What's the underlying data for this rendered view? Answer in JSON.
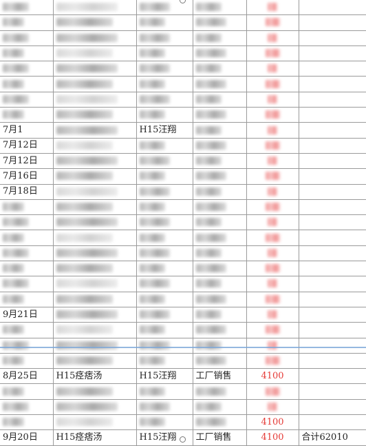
{
  "rows": [
    {
      "date": "",
      "item": "",
      "person": "",
      "type": "",
      "amount": "",
      "note": "",
      "blurred": true
    },
    {
      "date": "",
      "item": "",
      "person": "",
      "type": "",
      "amount": "",
      "note": "",
      "blurred": true
    },
    {
      "date": "",
      "item": "",
      "person": "",
      "type": "",
      "amount": "",
      "note": "",
      "blurred": true
    },
    {
      "date": "",
      "item": "",
      "person": "",
      "type": "",
      "amount": "",
      "note": "",
      "blurred": true
    },
    {
      "date": "",
      "item": "",
      "person": "",
      "type": "",
      "amount": "",
      "note": "",
      "blurred": true
    },
    {
      "date": "",
      "item": "",
      "person": "",
      "type": "",
      "amount": "",
      "note": "",
      "blurred": true
    },
    {
      "date": "",
      "item": "",
      "person": "",
      "type": "",
      "amount": "",
      "note": "",
      "blurred": true
    },
    {
      "date": "",
      "item": "",
      "person": "",
      "type": "",
      "amount": "",
      "note": "",
      "blurred": true
    },
    {
      "date": "7月1",
      "item": "",
      "person": "H15汪翔",
      "type": "",
      "amount": "",
      "note": "",
      "blurred": true
    },
    {
      "date": "7月12日",
      "item": "",
      "person": "",
      "type": "",
      "amount": "",
      "note": "",
      "blurred": true
    },
    {
      "date": "7月12日",
      "item": "",
      "person": "",
      "type": "",
      "amount": "",
      "note": "",
      "blurred": true
    },
    {
      "date": "7月16日",
      "item": "",
      "person": "",
      "type": "",
      "amount": "",
      "note": "",
      "blurred": true
    },
    {
      "date": "7月18日",
      "item": "",
      "person": "",
      "type": "",
      "amount": "",
      "note": "",
      "blurred": true
    },
    {
      "date": "",
      "item": "",
      "person": "",
      "type": "",
      "amount": "",
      "note": "",
      "blurred": true
    },
    {
      "date": "",
      "item": "",
      "person": "",
      "type": "",
      "amount": "",
      "note": "",
      "blurred": true
    },
    {
      "date": "",
      "item": "",
      "person": "",
      "type": "",
      "amount": "",
      "note": "",
      "blurred": true
    },
    {
      "date": "",
      "item": "",
      "person": "",
      "type": "",
      "amount": "",
      "note": "",
      "blurred": true
    },
    {
      "date": "",
      "item": "",
      "person": "",
      "type": "",
      "amount": "",
      "note": "",
      "blurred": true
    },
    {
      "date": "",
      "item": "",
      "person": "",
      "type": "",
      "amount": "",
      "note": "",
      "blurred": true
    },
    {
      "date": "",
      "item": "",
      "person": "",
      "type": "",
      "amount": "",
      "note": "",
      "blurred": true
    },
    {
      "date": "9月21日",
      "item": "",
      "person": "",
      "type": "",
      "amount": "",
      "note": "",
      "blurred": true
    },
    {
      "date": "",
      "item": "",
      "person": "",
      "type": "",
      "amount": "",
      "note": "",
      "blurred": true
    },
    {
      "date": "",
      "item": "",
      "person": "",
      "type": "",
      "amount": "",
      "note": "",
      "blurred": true
    },
    {
      "date": "",
      "item": "",
      "person": "",
      "type": "",
      "amount": "",
      "note": "",
      "blurred": true
    },
    {
      "date": "8月25日",
      "item": "H15痉痞汤",
      "person": "H15汪翔",
      "type": "工厂销售",
      "amount": "4100",
      "note": "",
      "blurred": false
    },
    {
      "date": "",
      "item": "",
      "person": "",
      "type": "",
      "amount": "",
      "note": "",
      "blurred": true
    },
    {
      "date": "",
      "item": "",
      "person": "",
      "type": "",
      "amount": "",
      "note": "",
      "blurred": true
    },
    {
      "date": "",
      "item": "",
      "person": "",
      "type": "",
      "amount": "4100",
      "note": "",
      "blurred": true
    },
    {
      "date": "9月20日",
      "item": "H15痉痞汤",
      "person": "H15汪翔",
      "type": "工厂销售",
      "amount": "4100",
      "note": "合计62010",
      "blurred": false
    }
  ]
}
